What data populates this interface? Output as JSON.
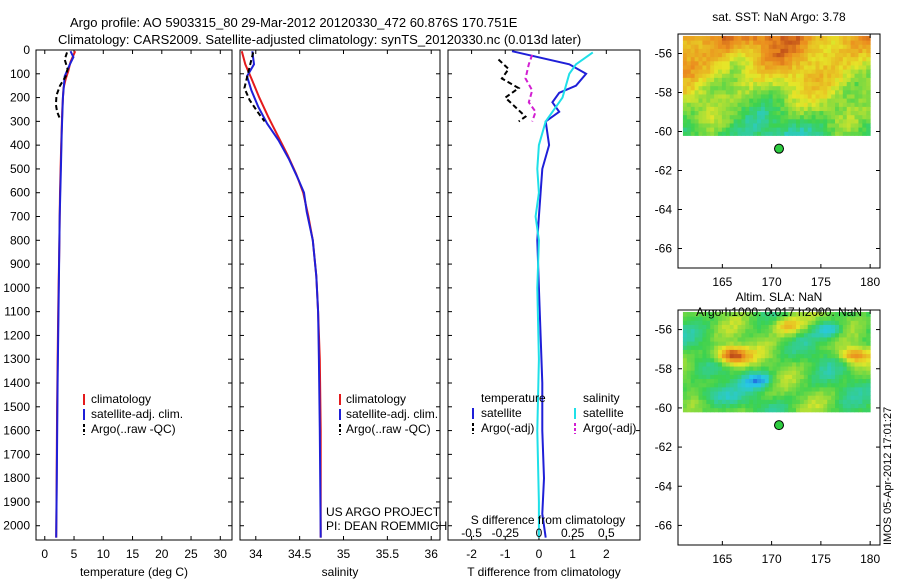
{
  "header": {
    "line1": "Argo profile: AO 5903315_80 29-Mar-2012 20120330_472 60.876S 170.751E",
    "line2": "Climatology: CARS2009. Satellite-adjusted climatology: synTS_20120330.nc (0.013d later)"
  },
  "side_label": "IMOS 05-Apr-2012 17:01:27",
  "colors": {
    "clim": "#e41a1c",
    "sat": "#1f1fd8",
    "argo": "#000000",
    "sal_sat": "#1fe0e8",
    "sal_argo": "#d21fd2"
  },
  "chart_data": [
    {
      "id": "temperature",
      "type": "line",
      "xlabel": "temperature (deg C)",
      "xlim": [
        -1.5,
        32
      ],
      "xticks": [
        0,
        5,
        10,
        15,
        20,
        25,
        30
      ],
      "xtick_labels": [
        "0",
        "5",
        "10",
        "15",
        "20",
        "25",
        "30"
      ],
      "ylim": [
        0,
        2060
      ],
      "yticks": [
        0,
        100,
        200,
        300,
        400,
        500,
        600,
        700,
        800,
        900,
        1000,
        1100,
        1200,
        1300,
        1400,
        1500,
        1600,
        1700,
        1800,
        1900,
        2000
      ],
      "ytick_labels": [
        "0",
        "100",
        "200",
        "300",
        "400",
        "500",
        "600",
        "700",
        "800",
        "900",
        "1000",
        "1100",
        "1200",
        "1300",
        "1400",
        "1500",
        "1600",
        "1700",
        "1800",
        "1900",
        "2000"
      ],
      "legend": [
        "climatology",
        "satellite-adj. clim.",
        "Argo(..raw -QC)"
      ],
      "series": [
        {
          "name": "climatology",
          "color_key": "clim",
          "dash": false,
          "x": [
            5.2,
            4.4,
            4.0,
            3.6,
            3.2,
            3.0,
            2.8,
            2.6,
            2.5,
            2.3,
            2.1,
            2.0,
            1.95
          ],
          "y": [
            5,
            50,
            90,
            120,
            160,
            250,
            400,
            600,
            800,
            1100,
            1500,
            1900,
            2050
          ]
        },
        {
          "name": "satellite-adj. clim.",
          "color_key": "sat",
          "dash": false,
          "x": [
            4.4,
            4.9,
            4.3,
            3.4,
            3.1,
            2.9,
            2.75,
            2.55,
            2.4,
            2.2,
            2.05,
            1.95
          ],
          "y": [
            5,
            30,
            60,
            110,
            200,
            350,
            500,
            700,
            1000,
            1400,
            1800,
            2050
          ]
        },
        {
          "name": "Argo(..raw -QC)",
          "color_key": "argo",
          "dash": true,
          "x": [
            3.8,
            3.4,
            3.9,
            3.6,
            2.6,
            2.0,
            1.9,
            2.1,
            2.6
          ],
          "y": [
            10,
            40,
            80,
            110,
            150,
            190,
            230,
            260,
            290
          ]
        }
      ]
    },
    {
      "id": "salinity",
      "type": "line",
      "xlabel": "salinity",
      "xlim": [
        33.82,
        36.1
      ],
      "xticks": [
        34,
        34.5,
        35,
        35.5,
        36
      ],
      "xtick_labels": [
        "34",
        "34.5",
        "35",
        "35.5",
        "36"
      ],
      "ylim": [
        0,
        2060
      ],
      "legend": [
        "climatology",
        "satellite-adj. clim.",
        "Argo(..raw -QC)"
      ],
      "annotation": [
        "US ARGO PROJECT",
        "PI: DEAN ROEMMICH"
      ],
      "series": [
        {
          "name": "climatology",
          "color_key": "clim",
          "dash": false,
          "x": [
            33.84,
            33.88,
            33.95,
            34.04,
            34.14,
            34.25,
            34.36,
            34.46,
            34.54,
            34.6,
            34.65,
            34.69,
            34.71,
            34.73,
            34.74,
            34.74
          ],
          "y": [
            5,
            60,
            120,
            200,
            280,
            360,
            440,
            520,
            600,
            700,
            800,
            950,
            1100,
            1300,
            1600,
            2050
          ]
        },
        {
          "name": "satellite-adj. clim.",
          "color_key": "sat",
          "dash": false,
          "x": [
            33.96,
            33.98,
            33.9,
            33.95,
            34.03,
            34.13,
            34.26,
            34.38,
            34.48,
            34.55,
            34.58,
            34.65,
            34.69,
            34.71,
            34.72,
            34.73,
            34.74
          ],
          "y": [
            5,
            60,
            110,
            170,
            240,
            310,
            380,
            460,
            540,
            600,
            680,
            800,
            950,
            1100,
            1300,
            1600,
            2050
          ]
        },
        {
          "name": "Argo(..raw -QC)",
          "color_key": "argo",
          "dash": true,
          "x": [
            33.97,
            33.91,
            33.87,
            33.93,
            34.02,
            34.1
          ],
          "y": [
            10,
            100,
            160,
            210,
            260,
            300
          ]
        }
      ]
    },
    {
      "id": "difference",
      "type": "line",
      "xlabel": "T difference from climatology",
      "xlabel_top": "S difference from climatology",
      "xlim": [
        -2.7,
        3.0
      ],
      "xticks": [
        -2,
        -1,
        0,
        1,
        2
      ],
      "xtick_labels": [
        "-2",
        "-1",
        "0",
        "1",
        "2"
      ],
      "sticks": [
        -2,
        -1,
        0,
        1,
        2
      ],
      "stick_labels": [
        "-0.5",
        "-0.25",
        "0",
        "0.25",
        "0.5"
      ],
      "ylim": [
        0,
        2060
      ],
      "legend_temperature": {
        "title": "temperature",
        "items": [
          "satellite",
          "Argo(-adj)"
        ]
      },
      "legend_salinity": {
        "title": "salinity",
        "items": [
          "satellite",
          "Argo(-adj)"
        ]
      },
      "series": [
        {
          "name": "T satellite",
          "color_key": "sat",
          "dash": false,
          "x": [
            -0.8,
            0.9,
            1.4,
            1.1,
            0.6,
            0.4,
            0.6,
            0.2,
            0.3,
            0.1,
            0.05,
            0.0,
            -0.05,
            0.0,
            0.05,
            0.1,
            0.1,
            0.15,
            0.1,
            0.2
          ],
          "y": [
            5,
            60,
            100,
            150,
            180,
            220,
            260,
            300,
            400,
            500,
            600,
            700,
            800,
            1000,
            1200,
            1400,
            1600,
            1800,
            1950,
            2050
          ]
        },
        {
          "name": "T Argo(-adj)",
          "color_key": "argo",
          "dash": true,
          "x": [
            -1.2,
            -0.9,
            -1.1,
            -0.6,
            -1.0,
            -0.7,
            -0.4,
            -0.6
          ],
          "y": [
            40,
            80,
            120,
            160,
            200,
            240,
            280,
            300
          ]
        },
        {
          "name": "S satellite",
          "color_key": "sal_sat",
          "dash": false,
          "x": [
            1.6,
            1.1,
            0.9,
            0.7,
            0.2,
            0.0,
            -0.05,
            0.0,
            -0.1,
            0.0,
            -0.05,
            0.0,
            -0.05,
            0.0,
            0.0
          ],
          "y": [
            10,
            60,
            100,
            200,
            300,
            400,
            500,
            600,
            700,
            800,
            1000,
            1300,
            1600,
            1900,
            2050
          ]
        },
        {
          "name": "S Argo(-adj)",
          "color_key": "sal_argo",
          "dash": true,
          "x": [
            -0.2,
            -0.3,
            -0.4,
            -0.2,
            -0.3,
            -0.1,
            -0.2
          ],
          "y": [
            20,
            60,
            120,
            170,
            220,
            260,
            300
          ]
        }
      ]
    },
    {
      "id": "sst_map",
      "type": "heatmap",
      "title": "sat. SST: NaN Argo: 3.78",
      "xlim": [
        160.5,
        181
      ],
      "ylim": [
        -67,
        -55
      ],
      "xticks": [
        165,
        170,
        175,
        180
      ],
      "xtick_labels": [
        "165",
        "170",
        "175",
        "180"
      ],
      "yticks": [
        -56,
        -58,
        -60,
        -62,
        -64,
        -66
      ],
      "ytick_labels": [
        "-56",
        "-58",
        "-60",
        "-62",
        "-64",
        "-66"
      ],
      "data_extent": {
        "lon": [
          161,
          180
        ],
        "lat": [
          -60.2,
          -55.1
        ]
      },
      "marker": {
        "lon": 170.75,
        "lat": -60.88
      }
    },
    {
      "id": "sla_map",
      "type": "heatmap",
      "title_line1": "Altim. SLA: NaN",
      "title_line2": "Argo h1000: 0.017 h2000: NaN",
      "xlim": [
        160.5,
        181
      ],
      "ylim": [
        -67,
        -55
      ],
      "xticks": [
        165,
        170,
        175,
        180
      ],
      "xtick_labels": [
        "165",
        "170",
        "175",
        "180"
      ],
      "yticks": [
        -56,
        -58,
        -60,
        -62,
        -64,
        -66
      ],
      "ytick_labels": [
        "-56",
        "-58",
        "-60",
        "-62",
        "-64",
        "-66"
      ],
      "data_extent": {
        "lon": [
          161,
          180
        ],
        "lat": [
          -60.2,
          -55.1
        ]
      },
      "marker": {
        "lon": 170.75,
        "lat": -60.88
      }
    }
  ]
}
